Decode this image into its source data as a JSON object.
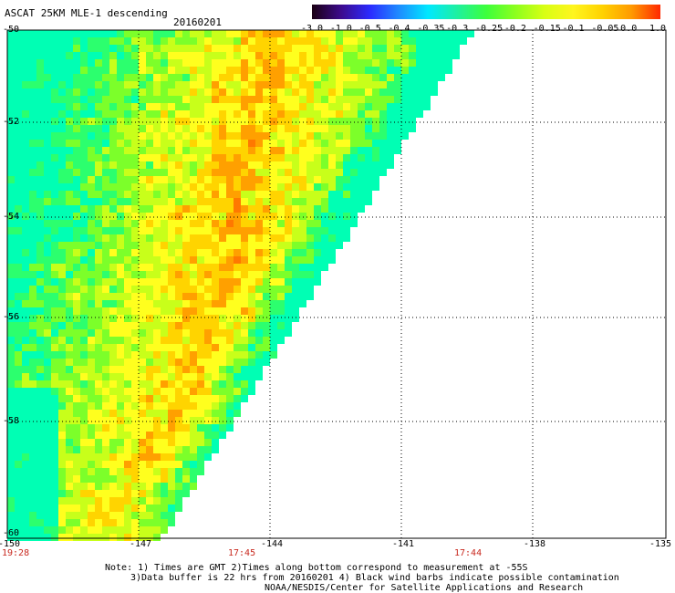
{
  "title": "ASCAT 25KM MLE-1 descending",
  "date": "20160201",
  "colorbar": {
    "labels": [
      "-3.0",
      "-1.0",
      "-0.5",
      "-0.4",
      "-0.35",
      "-0.3",
      "-0.25",
      "-0.2",
      "-0.15",
      "-0.1",
      "-0.05",
      "0.0",
      "1.0"
    ],
    "colors": [
      "#1a0012",
      "#3c0a8c",
      "#2b2bff",
      "#1e8cff",
      "#00e8ff",
      "#1ef0a0",
      "#3cff3c",
      "#8cff1e",
      "#d8ff14",
      "#fff51e",
      "#ffd200",
      "#ff9a00",
      "#ff2800"
    ]
  },
  "map": {
    "lon_ticks": [
      "-150",
      "-147",
      "-144",
      "-141",
      "-138",
      "-135"
    ],
    "lat_ticks": [
      "-50",
      "-52",
      "-54",
      "-56",
      "-58",
      "-60"
    ],
    "swath_colors": [
      "#00ffb4",
      "#2cff6e",
      "#7cff2a",
      "#c8ff1a",
      "#ffff1e",
      "#ffd400",
      "#ffa000",
      "#ff7800"
    ]
  },
  "times": [
    "19:28",
    "17:45",
    "17:44"
  ],
  "notes": [
    "Note: 1) Times are GMT 2)Times along bottom correspond to measurement at -55S",
    "3)Data buffer is 22 hrs from 20160201 4) Black wind barbs indicate possible contamination",
    "NOAA/NESDIS/Center for Satellite Applications and Research"
  ]
}
